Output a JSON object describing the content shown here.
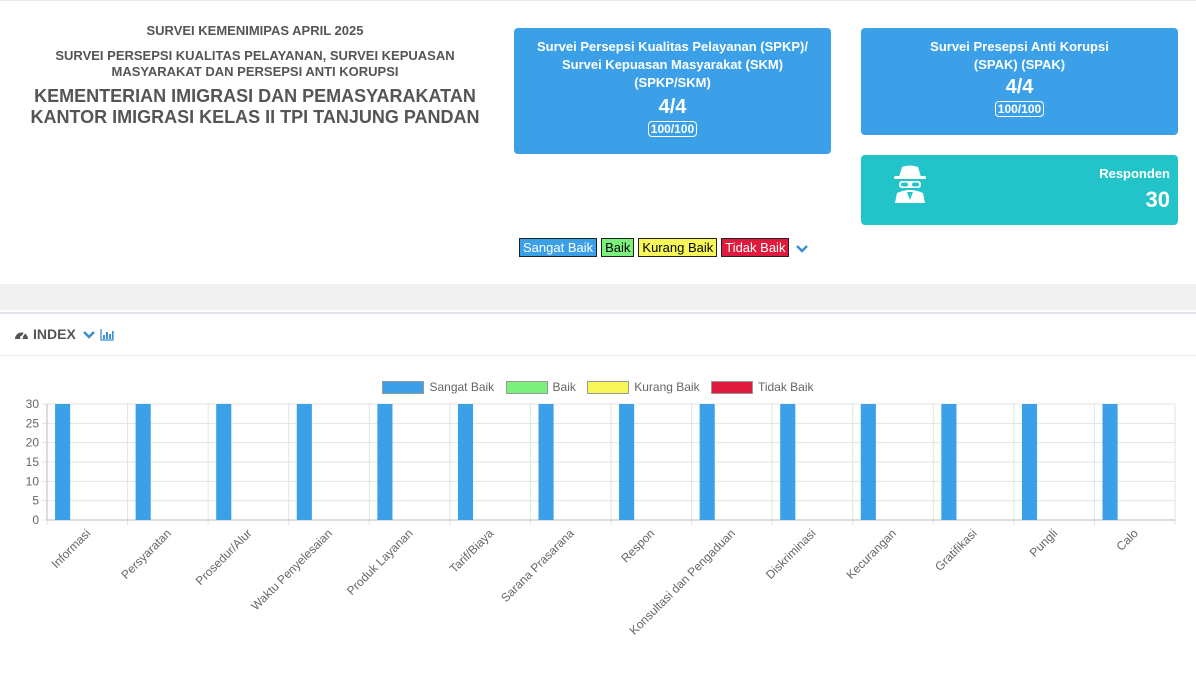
{
  "header": {
    "line1": "SURVEI KEMENIMIPAS APRIL 2025",
    "line2": "SURVEI PERSEPSI KUALITAS PELAYANAN, SURVEI KEPUASAN MASYARAKAT DAN PERSEPSI ANTI KORUPSI",
    "line3": "KEMENTERIAN IMIGRASI DAN PEMASYARAKATAN KANTOR IMIGRASI KELAS II TPI TANJUNG PANDAN"
  },
  "cards": {
    "spkp": {
      "title": "Survei Persepsi Kualitas Pelayanan (SPKP)/ Survei Kepuasan Masyarakat (SKM) (SPKP/SKM)",
      "value": "4/4",
      "badge": "100/100"
    },
    "spak": {
      "title": "Survei Presepsi Anti Korupsi (SPAK) (SPAK)",
      "value": "4/4",
      "badge": "100/100"
    },
    "responden": {
      "label": "Responden",
      "value": "30",
      "icon": "spy-icon"
    }
  },
  "top_legend": [
    {
      "label": "Sangat Baik",
      "color": "#3ba0e8",
      "text_color": "#ffffff"
    },
    {
      "label": "Baik",
      "color": "#7cf07c",
      "text_color": "#000000"
    },
    {
      "label": "Kurang Baik",
      "color": "#f7f75a",
      "text_color": "#000000"
    },
    {
      "label": "Tidak Baik",
      "color": "#e01a3c",
      "text_color": "#ffffff"
    }
  ],
  "panel": {
    "title": "INDEX",
    "icon": "dashboard-icon"
  },
  "chart_data": {
    "type": "bar",
    "categories": [
      "Informasi",
      "Persyaratan",
      "Prosedur/Alur",
      "Waktu Penyelesaian",
      "Produk Layanan",
      "Tarif/Biaya",
      "Sarana Prasarana",
      "Respon",
      "Konsultasi dan Pengaduan",
      "Diskriminasi",
      "Kecurangan",
      "Gratifikasi",
      "Pungli",
      "Calo"
    ],
    "series": [
      {
        "name": "Sangat Baik",
        "color": "#3ba0e8",
        "values": [
          30,
          30,
          30,
          30,
          30,
          30,
          30,
          30,
          30,
          30,
          30,
          30,
          30,
          30
        ]
      },
      {
        "name": "Baik",
        "color": "#7cf07c",
        "values": [
          0,
          0,
          0,
          0,
          0,
          0,
          0,
          0,
          0,
          0,
          0,
          0,
          0,
          0
        ]
      },
      {
        "name": "Kurang Baik",
        "color": "#f7f75a",
        "values": [
          0,
          0,
          0,
          0,
          0,
          0,
          0,
          0,
          0,
          0,
          0,
          0,
          0,
          0
        ]
      },
      {
        "name": "Tidak Baik",
        "color": "#e01a3c",
        "values": [
          0,
          0,
          0,
          0,
          0,
          0,
          0,
          0,
          0,
          0,
          0,
          0,
          0,
          0
        ]
      }
    ],
    "ylim": [
      0,
      30
    ],
    "yticks": [
      "0",
      "5",
      "10",
      "15",
      "20",
      "25",
      "30"
    ],
    "grid": true,
    "legend": "top"
  }
}
